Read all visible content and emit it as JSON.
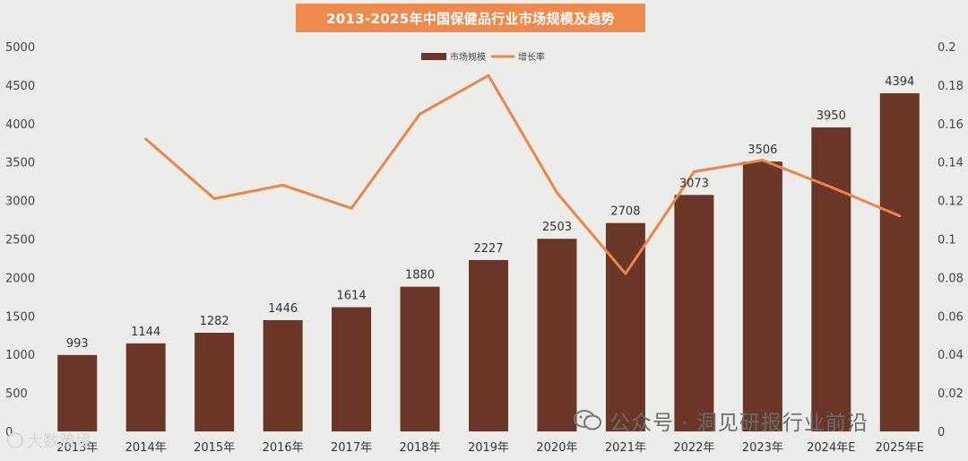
{
  "title": "2013-2025年中国保健品行业市场规模及趋势",
  "colors": {
    "bar": "#6b3528",
    "line": "#e9874a",
    "title_bg": "#ef8a4e"
  },
  "chart_data": {
    "type": "bar",
    "title": "2013-2025年中国保健品行业市场规模及趋势",
    "categories": [
      "2013年",
      "2014年",
      "2015年",
      "2016年",
      "2017年",
      "2018年",
      "2019年",
      "2020年",
      "2021年",
      "2022年",
      "2023年",
      "2024年E",
      "2025年E"
    ],
    "legend_position": "top",
    "series": [
      {
        "name": "市场规模",
        "type": "bar",
        "axis": "left",
        "values": [
          993,
          1144,
          1282,
          1446,
          1614,
          1880,
          2227,
          2503,
          2708,
          3073,
          3506,
          3950,
          4394
        ]
      },
      {
        "name": "增长率",
        "type": "line",
        "axis": "right",
        "values": [
          null,
          0.152,
          0.121,
          0.128,
          0.116,
          0.165,
          0.185,
          0.124,
          0.082,
          0.135,
          0.141,
          0.127,
          0.112
        ]
      }
    ],
    "ylim_left": [
      0,
      5000
    ],
    "yticks_left": [
      0,
      500,
      1000,
      1500,
      2000,
      2500,
      3000,
      3500,
      4000,
      4500,
      5000
    ],
    "ylim_right": [
      0,
      0.2
    ],
    "yticks_right": [
      0,
      0.02,
      0.04,
      0.06,
      0.08,
      0.1,
      0.12,
      0.14,
      0.16,
      0.18,
      0.2
    ],
    "grid": false
  },
  "watermark_text": "公众号 · 洞见研报行业前沿",
  "corner_text": "大数跨境"
}
